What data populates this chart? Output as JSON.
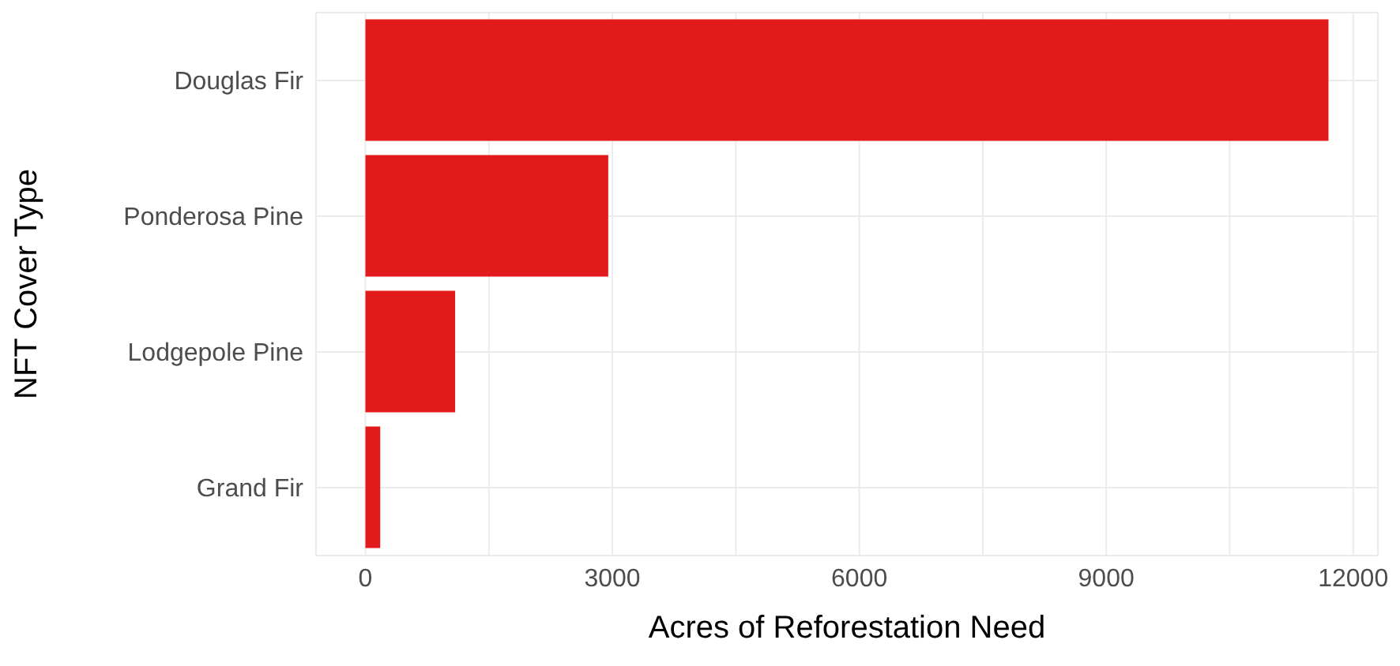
{
  "chart_data": {
    "type": "bar",
    "orientation": "horizontal",
    "xlabel": "Acres of Reforestation Need",
    "ylabel": "NFT Cover Type",
    "categories": [
      "Douglas Fir",
      "Ponderosa Pine",
      "Lodgepole Pine",
      "Grand Fir"
    ],
    "values": [
      11700,
      2950,
      1090,
      180
    ],
    "color": "#e31a1c",
    "xlim": [
      -600,
      12300
    ],
    "xticks": [
      0,
      {
        "value": 1500,
        "label": null
      },
      3000,
      {
        "value": 4500,
        "label": null
      },
      6000,
      {
        "value": 7500,
        "label": null
      },
      9000,
      {
        "value": 10500,
        "label": null
      },
      12000
    ],
    "grid": true
  }
}
